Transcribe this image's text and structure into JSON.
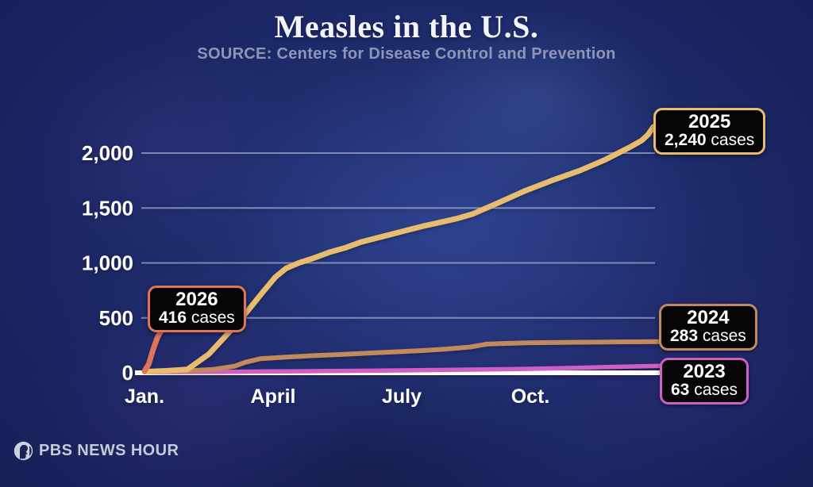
{
  "page": {
    "title": "Measles in the U.S.",
    "subtitle": "SOURCE: Centers for Disease Control and Prevention"
  },
  "branding": {
    "logo_text": "PBS NEWS HOUR",
    "logo_icon": "pbs-head-icon"
  },
  "chart_data": {
    "type": "line",
    "title": "Measles in the U.S.",
    "source": "Centers for Disease Control and Prevention",
    "xlabel": "",
    "ylabel": "cases",
    "x_unit": "months since Jan 1",
    "xlim": [
      0,
      12.2
    ],
    "ylim": [
      0,
      2400
    ],
    "grid": true,
    "x_ticks": [
      {
        "label": "Jan.",
        "month": 0
      },
      {
        "label": "April",
        "month": 3
      },
      {
        "label": "July",
        "month": 6
      },
      {
        "label": "Oct.",
        "month": 9
      }
    ],
    "y_ticks": [
      {
        "label": "0",
        "value": 0
      },
      {
        "label": "500",
        "value": 500
      },
      {
        "label": "1,000",
        "value": 1000
      },
      {
        "label": "1,500",
        "value": 1500
      },
      {
        "label": "2,000",
        "value": 2000
      }
    ],
    "series": [
      {
        "name": "2023",
        "color": "#cf5fc5",
        "stroke_width": 5.5,
        "total": 63,
        "total_label": "63",
        "unit_label": "cases",
        "points": [
          [
            0,
            5
          ],
          [
            1,
            7
          ],
          [
            2,
            9
          ],
          [
            3,
            12
          ],
          [
            4,
            15
          ],
          [
            5,
            18
          ],
          [
            6,
            22
          ],
          [
            7,
            26
          ],
          [
            8,
            30
          ],
          [
            9,
            36
          ],
          [
            10,
            44
          ],
          [
            11,
            54
          ],
          [
            12.05,
            63
          ]
        ]
      },
      {
        "name": "2024",
        "color": "#c28a5c",
        "stroke_width": 6,
        "total": 283,
        "total_label": "283",
        "unit_label": "cases",
        "points": [
          [
            0,
            8
          ],
          [
            1,
            18
          ],
          [
            1.6,
            30
          ],
          [
            2.1,
            60
          ],
          [
            2.35,
            95
          ],
          [
            2.7,
            128
          ],
          [
            3.3,
            142
          ],
          [
            3.9,
            155
          ],
          [
            4.5,
            165
          ],
          [
            5.2,
            178
          ],
          [
            5.8,
            190
          ],
          [
            6.4,
            200
          ],
          [
            7.0,
            215
          ],
          [
            7.6,
            235
          ],
          [
            8.0,
            262
          ],
          [
            8.9,
            272
          ],
          [
            10.1,
            278
          ],
          [
            12.0,
            283
          ]
        ]
      },
      {
        "name": "2025",
        "color": "#e8bc6e",
        "stroke_width": 7,
        "total": 2240,
        "total_label": "2,240",
        "unit_label": "cases",
        "points": [
          [
            0,
            10
          ],
          [
            0.5,
            18
          ],
          [
            1.0,
            30
          ],
          [
            1.5,
            170
          ],
          [
            2.0,
            380
          ],
          [
            2.4,
            560
          ],
          [
            2.75,
            730
          ],
          [
            3.05,
            870
          ],
          [
            3.3,
            950
          ],
          [
            3.6,
            1000
          ],
          [
            3.95,
            1045
          ],
          [
            4.3,
            1095
          ],
          [
            4.7,
            1140
          ],
          [
            5.05,
            1190
          ],
          [
            5.4,
            1225
          ],
          [
            5.8,
            1265
          ],
          [
            6.15,
            1300
          ],
          [
            6.5,
            1335
          ],
          [
            6.9,
            1370
          ],
          [
            7.3,
            1405
          ],
          [
            7.65,
            1445
          ],
          [
            8.3,
            1555
          ],
          [
            8.9,
            1660
          ],
          [
            9.5,
            1750
          ],
          [
            10.15,
            1840
          ],
          [
            10.75,
            1940
          ],
          [
            11.05,
            2000
          ],
          [
            11.35,
            2060
          ],
          [
            11.6,
            2115
          ],
          [
            11.75,
            2170
          ],
          [
            11.87,
            2240
          ]
        ]
      },
      {
        "name": "2026",
        "color": "#e0745a",
        "stroke_width": 7,
        "total": 416,
        "total_label": "416",
        "unit_label": "cases",
        "points": [
          [
            0,
            15
          ],
          [
            0.1,
            80
          ],
          [
            0.2,
            210
          ],
          [
            0.3,
            320
          ],
          [
            0.4,
            390
          ],
          [
            0.47,
            416
          ]
        ]
      }
    ]
  }
}
